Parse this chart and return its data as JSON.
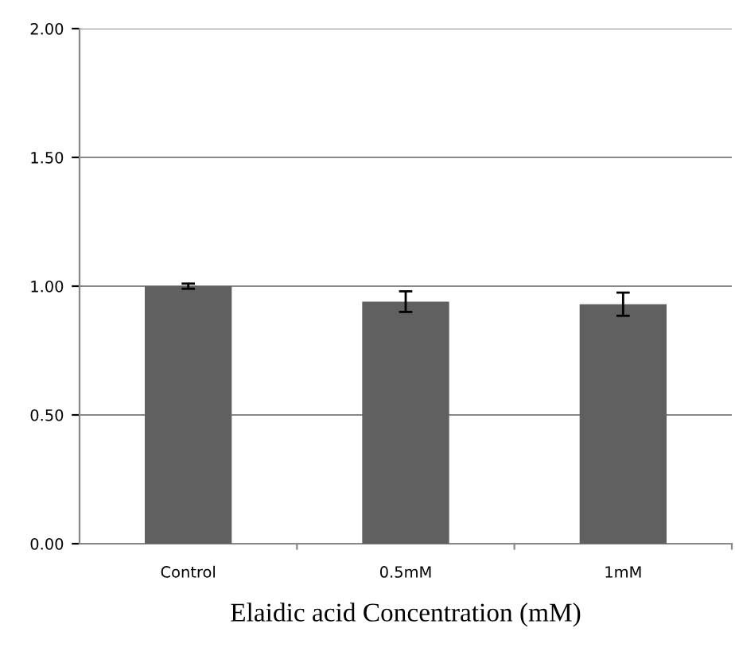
{
  "chart_data": {
    "type": "bar",
    "xlabel": "Elaidic acid Concentration (mM)",
    "categories": [
      "Control",
      "0.5mM",
      "1mM"
    ],
    "values": [
      1.0,
      0.94,
      0.93
    ],
    "errors": [
      0.01,
      0.04,
      0.045
    ],
    "color": "#606060",
    "ylim": [
      0,
      2
    ],
    "yticks": [
      {
        "value": 0,
        "label": "0.00"
      },
      {
        "value": 0.5,
        "label": "0.50"
      },
      {
        "value": 1,
        "label": "1.00"
      },
      {
        "value": 1.5,
        "label": "1.50"
      },
      {
        "value": 2,
        "label": "2.00"
      }
    ],
    "grid": "y",
    "legend": false
  }
}
